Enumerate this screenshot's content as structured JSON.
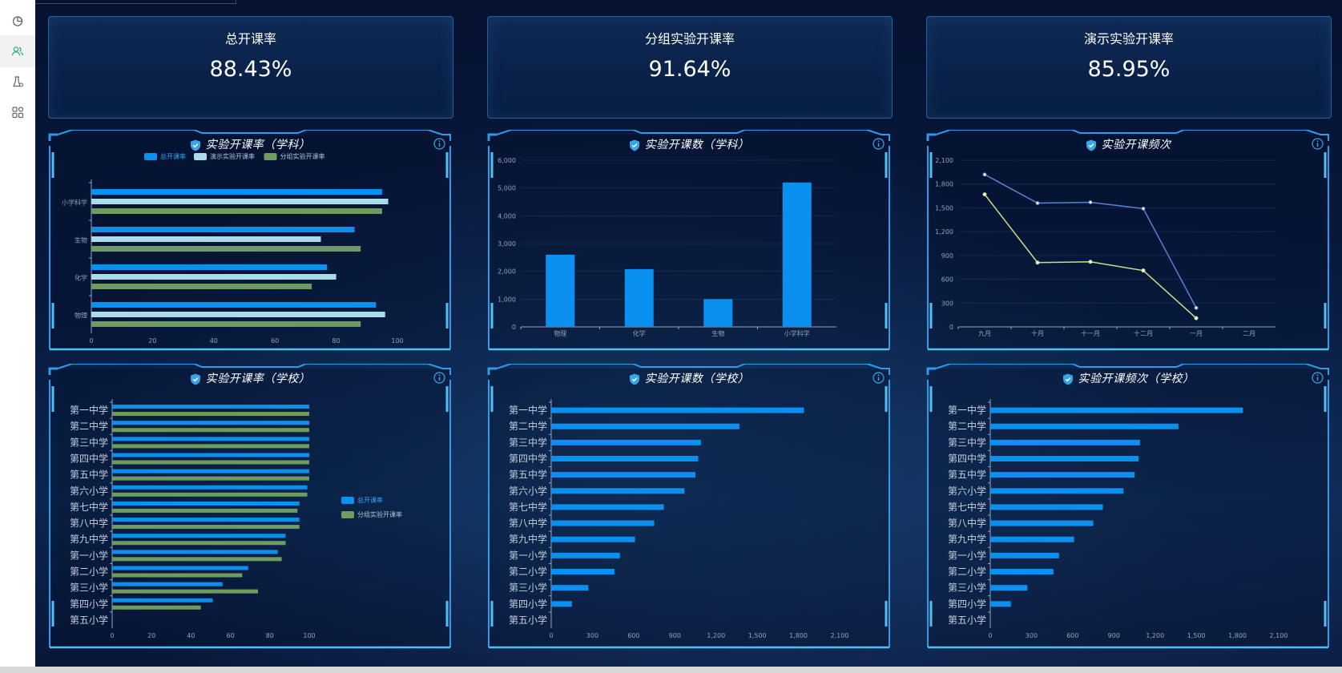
{
  "sidebar": {
    "items": [
      {
        "icon": "pie-chart-icon",
        "active": false
      },
      {
        "icon": "users-icon",
        "active": true
      },
      {
        "icon": "lab-flask-icon",
        "active": false
      },
      {
        "icon": "apps-grid-icon",
        "active": false
      }
    ]
  },
  "kpis": [
    {
      "title": "总开课率",
      "value": "88.43%"
    },
    {
      "title": "分组实验开课率",
      "value": "91.64%"
    },
    {
      "title": "演示实验开课率",
      "value": "85.95%"
    }
  ],
  "colors": {
    "blue": "#0a91f0",
    "lightblue": "#a9dbe8",
    "green": "#6f9b5e",
    "lineBlue": "#5b7fd6",
    "lineYellow": "#c9df8a",
    "frame": "#2e9bea"
  },
  "chart_data": [
    {
      "id": "subject-rate",
      "title": "实验开课率（学科）",
      "type": "bar",
      "orientation": "horizontal",
      "categories": [
        "物理",
        "化学",
        "生物",
        "小学科学"
      ],
      "series": [
        {
          "name": "总开课率",
          "color": "#0a91f0",
          "values": [
            93,
            77,
            86,
            95
          ]
        },
        {
          "name": "演示实验开课率",
          "color": "#a9dbe8",
          "values": [
            96,
            80,
            75,
            97
          ]
        },
        {
          "name": "分组实验开课率",
          "color": "#6f9b5e",
          "values": [
            88,
            72,
            88,
            95
          ]
        }
      ],
      "xlim": [
        0,
        100
      ],
      "xticks": [
        "0",
        "20",
        "40",
        "60",
        "80",
        "100"
      ],
      "legend": "top-center"
    },
    {
      "id": "subject-count",
      "title": "实验开课数（学科）",
      "type": "bar",
      "orientation": "vertical",
      "categories": [
        "物理",
        "化学",
        "生物",
        "小学科学"
      ],
      "series": [
        {
          "color": "#0a91f0",
          "values": [
            2600,
            2080,
            1000,
            5200
          ]
        }
      ],
      "ylim": [
        0,
        6000
      ],
      "yticks": [
        "0",
        "1,000",
        "2,000",
        "3,000",
        "4,000",
        "5,000",
        "6,000"
      ]
    },
    {
      "id": "frequency",
      "title": "实验开课频次",
      "type": "line",
      "categories": [
        "九月",
        "十月",
        "十一月",
        "十二月",
        "一月",
        "二月"
      ],
      "series": [
        {
          "color": "#5b7fd6",
          "values": [
            1920,
            1560,
            1570,
            1490,
            240,
            null
          ]
        },
        {
          "color": "#c9df8a",
          "values": [
            1670,
            810,
            820,
            710,
            110,
            null
          ]
        }
      ],
      "ylim": [
        0,
        2100
      ],
      "yticks": [
        "0",
        "300",
        "600",
        "900",
        "1,200",
        "1,500",
        "1,800",
        "2,100"
      ]
    },
    {
      "id": "school-rate",
      "title": "实验开课率（学校）",
      "type": "bar",
      "orientation": "horizontal",
      "categories": [
        "第一中学",
        "第二中学",
        "第三中学",
        "第四中学",
        "第五中学",
        "第六小学",
        "第七中学",
        "第八中学",
        "第九中学",
        "第一小学",
        "第二小学",
        "第三小学",
        "第四小学",
        "第五小学"
      ],
      "series": [
        {
          "name": "总开课率",
          "color": "#0a91f0",
          "values": [
            100,
            100,
            100,
            100,
            100,
            99,
            95,
            95,
            88,
            84,
            69,
            56,
            51,
            0
          ]
        },
        {
          "name": "分组实验开课率",
          "color": "#6f9b5e",
          "values": [
            100,
            100,
            100,
            100,
            100,
            99,
            94,
            95,
            88,
            86,
            66,
            74,
            45,
            0
          ]
        }
      ],
      "xlim": [
        0,
        100
      ],
      "xticks": [
        "0",
        "20",
        "40",
        "60",
        "80",
        "100"
      ],
      "legend": "right"
    },
    {
      "id": "school-count",
      "title": "实验开课数（学校）",
      "type": "bar",
      "orientation": "horizontal",
      "categories": [
        "第一中学",
        "第二中学",
        "第三中学",
        "第四中学",
        "第五中学",
        "第六小学",
        "第七中学",
        "第八中学",
        "第九中学",
        "第一小学",
        "第二小学",
        "第三小学",
        "第四小学",
        "第五小学"
      ],
      "series": [
        {
          "color": "#0a91f0",
          "values": [
            1840,
            1370,
            1090,
            1070,
            1050,
            970,
            820,
            750,
            610,
            500,
            460,
            270,
            150,
            0
          ]
        }
      ],
      "xlim": [
        0,
        2100
      ],
      "xticks": [
        "0",
        "300",
        "600",
        "900",
        "1,200",
        "1,500",
        "1,800",
        "2,100"
      ]
    },
    {
      "id": "school-frequency",
      "title": "实验开课频次（学校）",
      "type": "bar",
      "orientation": "horizontal",
      "categories": [
        "第一中学",
        "第二中学",
        "第三中学",
        "第四中学",
        "第五中学",
        "第六小学",
        "第七中学",
        "第八中学",
        "第九中学",
        "第一小学",
        "第二小学",
        "第三小学",
        "第四小学",
        "第五小学"
      ],
      "series": [
        {
          "color": "#0a91f0",
          "values": [
            1840,
            1370,
            1090,
            1080,
            1050,
            970,
            820,
            750,
            610,
            500,
            460,
            270,
            150,
            0
          ]
        }
      ],
      "xlim": [
        0,
        2100
      ],
      "xticks": [
        "0",
        "300",
        "600",
        "900",
        "1,200",
        "1,500",
        "1,800",
        "2,100"
      ]
    }
  ]
}
